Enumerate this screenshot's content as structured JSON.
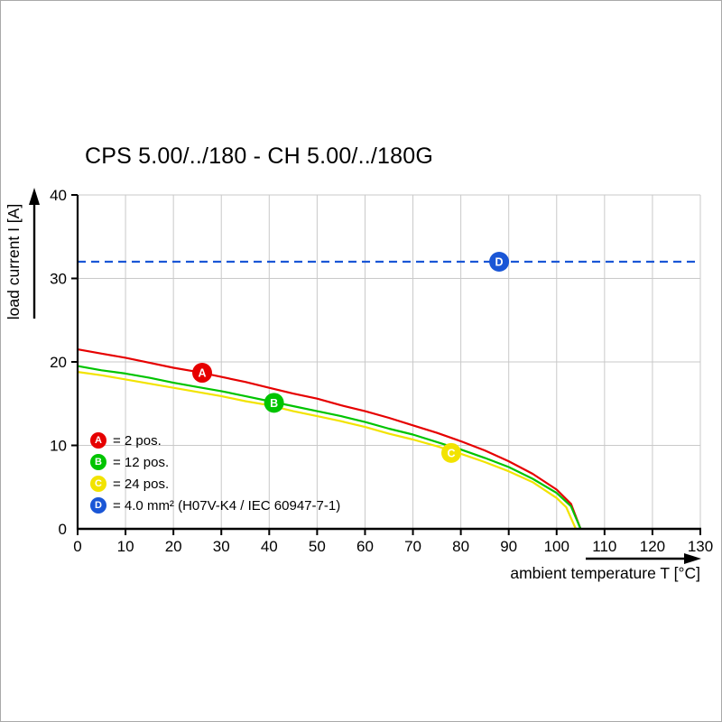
{
  "chart_data": {
    "type": "line",
    "title": "CPS 5.00/../180 - CH 5.00/../180G",
    "xlabel": "ambient temperature T [°C]",
    "ylabel": "load current I [A]",
    "xlim": [
      0,
      130
    ],
    "ylim": [
      0,
      40
    ],
    "xticks": [
      0,
      10,
      20,
      30,
      40,
      50,
      60,
      70,
      80,
      90,
      100,
      110,
      120,
      130
    ],
    "yticks": [
      0,
      10,
      20,
      30,
      40
    ],
    "grid": true,
    "grid_color": "#c9c9c9",
    "legend_position": "inside bottom-left",
    "series": [
      {
        "id": "A",
        "label": "= 2 pos.",
        "color": "#e60000",
        "dashed": false,
        "marker_at": {
          "x": 26,
          "y": 18.7
        },
        "points": [
          [
            0,
            21.5
          ],
          [
            5,
            21.0
          ],
          [
            10,
            20.5
          ],
          [
            15,
            19.9
          ],
          [
            20,
            19.3
          ],
          [
            25,
            18.8
          ],
          [
            30,
            18.2
          ],
          [
            35,
            17.6
          ],
          [
            40,
            16.9
          ],
          [
            45,
            16.2
          ],
          [
            50,
            15.6
          ],
          [
            55,
            14.8
          ],
          [
            60,
            14.1
          ],
          [
            65,
            13.3
          ],
          [
            70,
            12.4
          ],
          [
            75,
            11.5
          ],
          [
            80,
            10.5
          ],
          [
            85,
            9.4
          ],
          [
            90,
            8.1
          ],
          [
            95,
            6.6
          ],
          [
            100,
            4.7
          ],
          [
            103,
            3.0
          ],
          [
            105,
            0
          ]
        ]
      },
      {
        "id": "B",
        "label": "= 12 pos.",
        "color": "#00c400",
        "dashed": false,
        "marker_at": {
          "x": 41,
          "y": 15.1
        },
        "points": [
          [
            0,
            19.5
          ],
          [
            5,
            19.0
          ],
          [
            10,
            18.6
          ],
          [
            15,
            18.1
          ],
          [
            20,
            17.5
          ],
          [
            25,
            17.0
          ],
          [
            30,
            16.5
          ],
          [
            35,
            15.9
          ],
          [
            40,
            15.3
          ],
          [
            45,
            14.7
          ],
          [
            50,
            14.1
          ],
          [
            55,
            13.5
          ],
          [
            60,
            12.8
          ],
          [
            65,
            12.0
          ],
          [
            70,
            11.3
          ],
          [
            75,
            10.4
          ],
          [
            80,
            9.5
          ],
          [
            85,
            8.5
          ],
          [
            90,
            7.4
          ],
          [
            95,
            6.0
          ],
          [
            100,
            4.3
          ],
          [
            103,
            2.7
          ],
          [
            105,
            0
          ]
        ]
      },
      {
        "id": "C",
        "label": "= 24 pos.",
        "color": "#f2e300",
        "dashed": false,
        "marker_at": {
          "x": 78,
          "y": 9.1
        },
        "points": [
          [
            0,
            18.8
          ],
          [
            5,
            18.4
          ],
          [
            10,
            17.9
          ],
          [
            15,
            17.4
          ],
          [
            20,
            16.9
          ],
          [
            25,
            16.4
          ],
          [
            30,
            15.9
          ],
          [
            35,
            15.3
          ],
          [
            40,
            14.8
          ],
          [
            45,
            14.1
          ],
          [
            50,
            13.5
          ],
          [
            55,
            12.9
          ],
          [
            60,
            12.2
          ],
          [
            65,
            11.4
          ],
          [
            70,
            10.7
          ],
          [
            75,
            9.9
          ],
          [
            80,
            9.0
          ],
          [
            85,
            8.0
          ],
          [
            90,
            6.9
          ],
          [
            95,
            5.6
          ],
          [
            100,
            3.7
          ],
          [
            102,
            2.6
          ],
          [
            104,
            0
          ]
        ]
      },
      {
        "id": "D",
        "label": "= 4.0 mm² (H07V-K4 / IEC 60947-7-1)",
        "color": "#1a56d6",
        "dashed": true,
        "marker_at": {
          "x": 88,
          "y": 32
        },
        "points": [
          [
            0,
            32
          ],
          [
            130,
            32
          ]
        ]
      }
    ]
  }
}
